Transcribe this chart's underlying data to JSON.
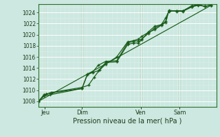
{
  "bg_color": "#cce8e0",
  "grid_major_color": "#ffffff",
  "grid_minor_color": "#ddf0eb",
  "line_color": "#1a5c1a",
  "marker_color": "#1a5c1a",
  "ylabel_ticks": [
    1008,
    1010,
    1012,
    1014,
    1016,
    1018,
    1020,
    1022,
    1024
  ],
  "ylim": [
    1007.0,
    1025.5
  ],
  "xlim": [
    0.0,
    8.2
  ],
  "xlabel": "Pression niveau de la mer( hPa )",
  "day_labels": [
    "Jeu",
    "Dim",
    "Ven",
    "Sam"
  ],
  "day_positions": [
    0.3,
    2.0,
    4.7,
    6.5
  ],
  "vline_positions": [
    0.3,
    2.0,
    4.7,
    6.5
  ],
  "series1_x": [
    0.0,
    0.25,
    0.55,
    2.0,
    2.25,
    2.5,
    2.75,
    3.1,
    3.6,
    4.1,
    4.35,
    4.6,
    4.75,
    5.05,
    5.35,
    5.65,
    5.85,
    6.0,
    6.35,
    6.65,
    7.05,
    7.35,
    7.65,
    7.95
  ],
  "series1_y": [
    1008.0,
    1009.2,
    1009.5,
    1010.3,
    1012.8,
    1013.2,
    1013.5,
    1015.0,
    1015.1,
    1018.2,
    1018.5,
    1018.5,
    1019.1,
    1020.5,
    1021.5,
    1021.8,
    1023.0,
    1024.2,
    1024.3,
    1024.3,
    1025.0,
    1025.3,
    1025.1,
    1025.3
  ],
  "series2_x": [
    0.0,
    0.25,
    0.55,
    2.0,
    2.25,
    2.5,
    2.75,
    3.1,
    3.6,
    4.1,
    4.35,
    4.6,
    4.75,
    5.05,
    5.35,
    5.65,
    5.85,
    6.0,
    6.35,
    6.65,
    7.05,
    7.35,
    7.65,
    7.95
  ],
  "series2_y": [
    1008.0,
    1009.0,
    1009.2,
    1010.3,
    1012.9,
    1013.3,
    1014.5,
    1015.2,
    1015.3,
    1018.5,
    1018.8,
    1018.9,
    1019.2,
    1020.2,
    1021.2,
    1021.8,
    1022.4,
    1024.3,
    1024.3,
    1024.3,
    1025.2,
    1025.4,
    1025.1,
    1025.3
  ],
  "series3_x": [
    0.0,
    7.95
  ],
  "series3_y": [
    1008.0,
    1025.3
  ],
  "series4_x": [
    0.0,
    0.35,
    0.6,
    2.0,
    2.3,
    2.55,
    2.8,
    3.1,
    3.6,
    4.1,
    4.35,
    4.6,
    4.75,
    5.05,
    5.35,
    5.65,
    5.85,
    6.0,
    6.35,
    6.65,
    7.05,
    7.35,
    7.65,
    7.95
  ],
  "series4_y": [
    1008.0,
    1009.3,
    1009.6,
    1010.5,
    1010.9,
    1012.3,
    1013.6,
    1014.7,
    1016.0,
    1018.7,
    1018.9,
    1019.2,
    1019.7,
    1020.4,
    1020.9,
    1021.7,
    1022.2,
    1024.4,
    1024.2,
    1024.2,
    1025.0,
    1025.4,
    1025.1,
    1025.3
  ]
}
